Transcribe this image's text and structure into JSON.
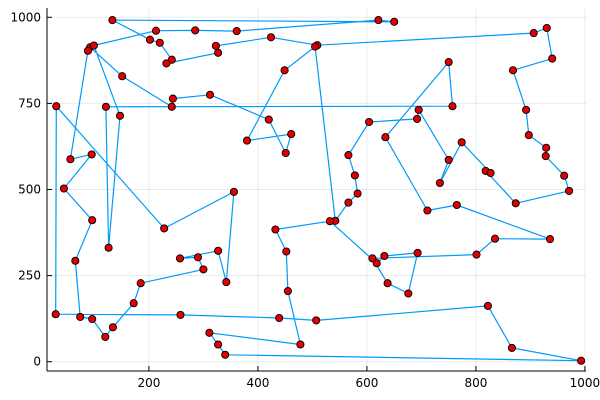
{
  "chart_data": {
    "type": "line",
    "title": "",
    "xlabel": "",
    "ylabel": "",
    "xlim": [
      13,
      1002
    ],
    "ylim": [
      -27,
      1027
    ],
    "xticks": [
      200,
      400,
      600,
      800,
      1000
    ],
    "yticks": [
      0,
      250,
      500,
      750,
      1000
    ],
    "grid": true,
    "legend": "none",
    "colors": {
      "line": "#009AFA",
      "marker": "#E00000",
      "marker_edge": "#000000"
    },
    "points": [
      [
        133,
        992
      ],
      [
        202,
        935
      ],
      [
        220,
        926
      ],
      [
        242,
        877
      ],
      [
        232,
        866
      ],
      [
        327,
        897
      ],
      [
        323,
        917
      ],
      [
        424,
        942
      ],
      [
        509,
        919
      ],
      [
        906,
        954
      ],
      [
        930,
        969
      ],
      [
        940,
        880
      ],
      [
        868,
        846
      ],
      [
        892,
        731
      ],
      [
        897,
        658
      ],
      [
        929,
        621
      ],
      [
        928,
        597
      ],
      [
        962,
        540
      ],
      [
        971,
        496
      ],
      [
        873,
        460
      ],
      [
        818,
        554
      ],
      [
        827,
        548
      ],
      [
        774,
        637
      ],
      [
        734,
        519
      ],
      [
        750,
        586
      ],
      [
        695,
        731
      ],
      [
        692,
        705
      ],
      [
        604,
        696
      ],
      [
        566,
        600
      ],
      [
        578,
        541
      ],
      [
        583,
        488
      ],
      [
        566,
        462
      ],
      [
        542,
        409
      ],
      [
        505,
        915
      ],
      [
        449,
        846
      ],
      [
        380,
        642
      ],
      [
        461,
        661
      ],
      [
        451,
        606
      ],
      [
        420,
        703
      ],
      [
        312,
        775
      ],
      [
        244,
        764
      ],
      [
        242,
        740
      ],
      [
        151,
        829
      ],
      [
        92,
        913
      ],
      [
        88,
        903
      ],
      [
        56,
        588
      ],
      [
        95,
        602
      ],
      [
        44,
        503
      ],
      [
        96,
        411
      ],
      [
        65,
        293
      ],
      [
        74,
        130
      ],
      [
        96,
        124
      ],
      [
        120,
        72
      ],
      [
        134,
        100
      ],
      [
        172,
        170
      ],
      [
        185,
        228
      ],
      [
        300,
        268
      ],
      [
        290,
        303
      ],
      [
        257,
        300
      ],
      [
        327,
        322
      ],
      [
        342,
        231
      ],
      [
        356,
        493
      ],
      [
        228,
        387
      ],
      [
        30,
        742
      ],
      [
        29,
        138
      ],
      [
        258,
        136
      ],
      [
        439,
        127
      ],
      [
        507,
        120
      ],
      [
        822,
        162
      ],
      [
        866,
        40
      ],
      [
        993,
        3
      ],
      [
        340,
        20
      ],
      [
        327,
        50
      ],
      [
        311,
        84
      ],
      [
        478,
        50
      ],
      [
        455,
        205
      ],
      [
        452,
        320
      ],
      [
        432,
        384
      ],
      [
        532,
        408
      ],
      [
        618,
        286
      ],
      [
        632,
        307
      ],
      [
        693,
        316
      ],
      [
        676,
        198
      ],
      [
        638,
        228
      ],
      [
        610,
        300
      ],
      [
        801,
        311
      ],
      [
        835,
        357
      ],
      [
        936,
        356
      ],
      [
        765,
        455
      ],
      [
        711,
        439
      ],
      [
        634,
        652
      ],
      [
        750,
        870
      ],
      [
        757,
        742
      ],
      [
        121,
        740
      ],
      [
        126,
        331
      ],
      [
        147,
        714
      ],
      [
        99,
        918
      ],
      [
        213,
        961
      ],
      [
        285,
        962
      ],
      [
        361,
        960
      ],
      [
        621,
        992
      ],
      [
        650,
        987
      ]
    ]
  }
}
